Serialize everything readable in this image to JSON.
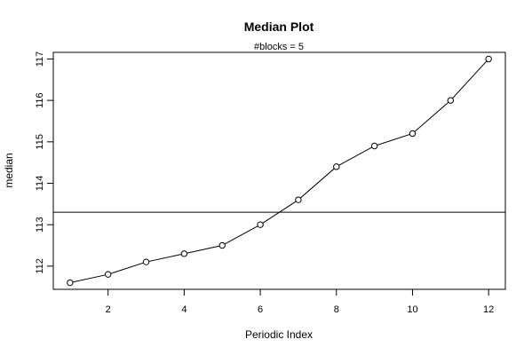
{
  "chart_data": {
    "type": "line",
    "title": "Median Plot",
    "subtitle": "#blocks =  5",
    "xlabel": "Periodic Index",
    "ylabel": "median",
    "x": [
      1,
      2,
      3,
      4,
      5,
      6,
      7,
      8,
      9,
      10,
      11,
      12
    ],
    "y": [
      111.6,
      111.8,
      112.1,
      112.3,
      112.5,
      113.0,
      113.6,
      114.4,
      114.9,
      115.2,
      116.0,
      117.0
    ],
    "xticks": [
      "2",
      "4",
      "6",
      "8",
      "10",
      "12"
    ],
    "yticks": [
      "112",
      "113",
      "114",
      "115",
      "116",
      "117"
    ],
    "reference_line": 113.3,
    "xlim": [
      0.56,
      12.44
    ],
    "ylim": [
      111.44,
      117.16
    ],
    "marker": "open-circle",
    "line_color": "#000000",
    "grid": false
  }
}
